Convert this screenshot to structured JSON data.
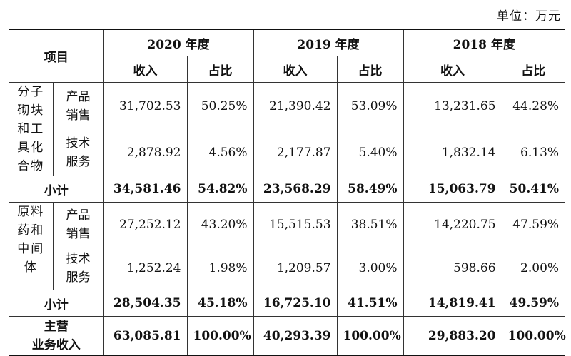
{
  "unit_label": "单位：万元",
  "header": {
    "item": "项目",
    "years": [
      "2020 年度",
      "2019 年度",
      "2018 年度"
    ],
    "revenue": "收入",
    "share": "占比"
  },
  "groups": [
    {
      "category_lines": [
        "分子",
        "砌块",
        "和工",
        "具化",
        "合物"
      ],
      "rows": [
        {
          "sub_lines": [
            "产品",
            "销售"
          ],
          "values": [
            "31,702.53",
            "50.25%",
            "21,390.42",
            "53.09%",
            "13,231.65",
            "44.28%"
          ]
        },
        {
          "sub_lines": [
            "技术",
            "服务"
          ],
          "values": [
            "2,878.92",
            "4.56%",
            "2,177.87",
            "5.40%",
            "1,832.14",
            "6.13%"
          ]
        }
      ],
      "subtotal_label": "小计",
      "subtotal": [
        "34,581.46",
        "54.82%",
        "23,568.29",
        "58.49%",
        "15,063.79",
        "50.41%"
      ]
    },
    {
      "category_lines": [
        "原料",
        "药和",
        "中间",
        "体"
      ],
      "rows": [
        {
          "sub_lines": [
            "产品",
            "销售"
          ],
          "values": [
            "27,252.12",
            "43.20%",
            "15,515.53",
            "38.51%",
            "14,220.75",
            "47.59%"
          ]
        },
        {
          "sub_lines": [
            "技术",
            "服务"
          ],
          "values": [
            "1,252.24",
            "1.98%",
            "1,209.57",
            "3.00%",
            "598.66",
            "2.00%"
          ]
        }
      ],
      "subtotal_label": "小计",
      "subtotal": [
        "28,504.35",
        "45.18%",
        "16,725.10",
        "41.51%",
        "14,819.41",
        "49.59%"
      ]
    }
  ],
  "total": {
    "label_lines": [
      "主营",
      "业务收入"
    ],
    "values": [
      "63,085.81",
      "100.00%",
      "40,293.39",
      "100.00%",
      "29,883.20",
      "100.00%"
    ]
  }
}
